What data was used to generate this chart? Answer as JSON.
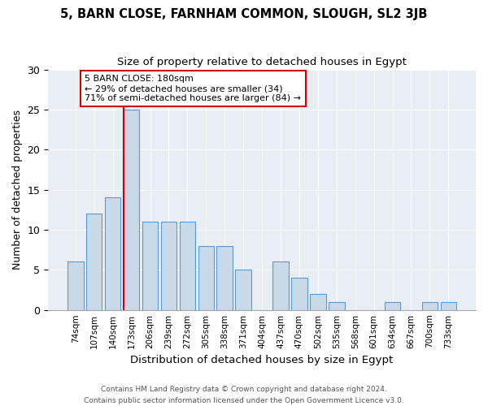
{
  "title1": "5, BARN CLOSE, FARNHAM COMMON, SLOUGH, SL2 3JB",
  "title2": "Size of property relative to detached houses in Egypt",
  "xlabel": "Distribution of detached houses by size in Egypt",
  "ylabel": "Number of detached properties",
  "bar_labels": [
    "74sqm",
    "107sqm",
    "140sqm",
    "173sqm",
    "206sqm",
    "239sqm",
    "272sqm",
    "305sqm",
    "338sqm",
    "371sqm",
    "404sqm",
    "437sqm",
    "470sqm",
    "502sqm",
    "535sqm",
    "568sqm",
    "601sqm",
    "634sqm",
    "667sqm",
    "700sqm",
    "733sqm"
  ],
  "bar_values": [
    6,
    12,
    14,
    25,
    11,
    11,
    11,
    8,
    8,
    5,
    0,
    6,
    4,
    2,
    1,
    0,
    0,
    1,
    0,
    1,
    1
  ],
  "bar_color": "#c9d9e8",
  "bar_edge_color": "#5b9bd5",
  "vline_color": "#cc0000",
  "annotation_text": "5 BARN CLOSE: 180sqm\n← 29% of detached houses are smaller (34)\n71% of semi-detached houses are larger (84) →",
  "annotation_box_color": "white",
  "annotation_box_edge_color": "#cc0000",
  "ylim": [
    0,
    30
  ],
  "yticks": [
    0,
    5,
    10,
    15,
    20,
    25,
    30
  ],
  "background_color": "#e8eef4",
  "footer_line1": "Contains HM Land Registry data © Crown copyright and database right 2024.",
  "footer_line2": "Contains public sector information licensed under the Open Government Licence v3.0."
}
